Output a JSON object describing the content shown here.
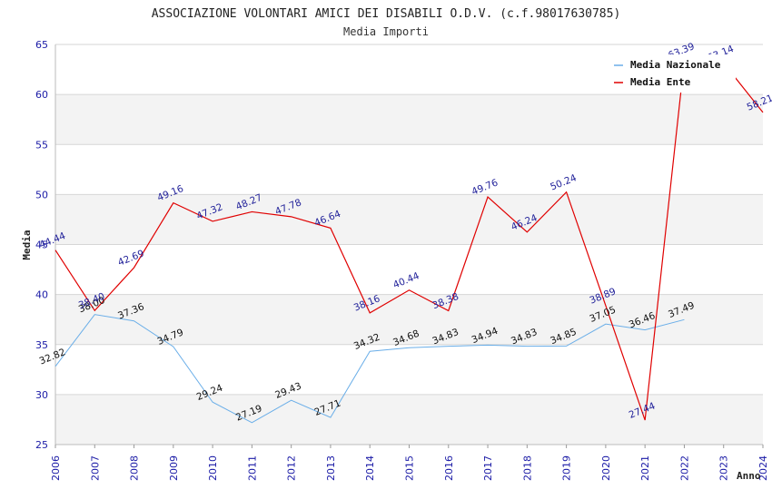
{
  "chart_data": {
    "type": "line",
    "title": "ASSOCIAZIONE VOLONTARI AMICI DEI DISABILI O.D.V. (c.f.98017630785)",
    "subtitle": "Media Importi",
    "xlabel": "Anno",
    "ylabel": "Media",
    "ylim": [
      25,
      65
    ],
    "yticks": [
      25,
      30,
      35,
      40,
      45,
      50,
      55,
      60,
      65
    ],
    "x": [
      "2006",
      "2007",
      "2008",
      "2009",
      "2010",
      "2011",
      "2012",
      "2013",
      "2014",
      "2015",
      "2016",
      "2017",
      "2018",
      "2019",
      "2020",
      "2021",
      "2022",
      "2023",
      "2024"
    ],
    "grid": true,
    "legend_position": "top-right",
    "series": [
      {
        "name": "Media Nazionale",
        "color": "#6aaee8",
        "values": [
          32.82,
          38.0,
          37.36,
          34.79,
          29.24,
          27.19,
          29.43,
          27.71,
          34.32,
          34.68,
          34.83,
          34.94,
          34.83,
          34.85,
          37.05,
          36.46,
          37.49,
          null,
          null
        ],
        "labels": [
          "32.82",
          "38.00",
          "37.36",
          "34.79",
          "29.24",
          "27.19",
          "29.43",
          "27.71",
          "34.32",
          "34.68",
          "34.83",
          "34.94",
          "34.83",
          "34.85",
          "37.05",
          "36.46",
          "37.49",
          null,
          null
        ]
      },
      {
        "name": "Media Ente",
        "color": "#e00000",
        "values": [
          44.44,
          38.4,
          42.69,
          49.16,
          47.32,
          48.27,
          47.78,
          46.64,
          38.16,
          40.44,
          38.38,
          49.76,
          46.24,
          50.24,
          38.89,
          27.44,
          63.39,
          63.14,
          58.21
        ],
        "labels": [
          "44.44",
          "38.40",
          "42.69",
          "49.16",
          "47.32",
          "48.27",
          "47.78",
          "46.64",
          "38.16",
          "40.44",
          "38.38",
          "49.76",
          "46.24",
          "50.24",
          "38.89",
          "27.44",
          "63.39",
          "63.14",
          "58.21"
        ]
      }
    ]
  }
}
